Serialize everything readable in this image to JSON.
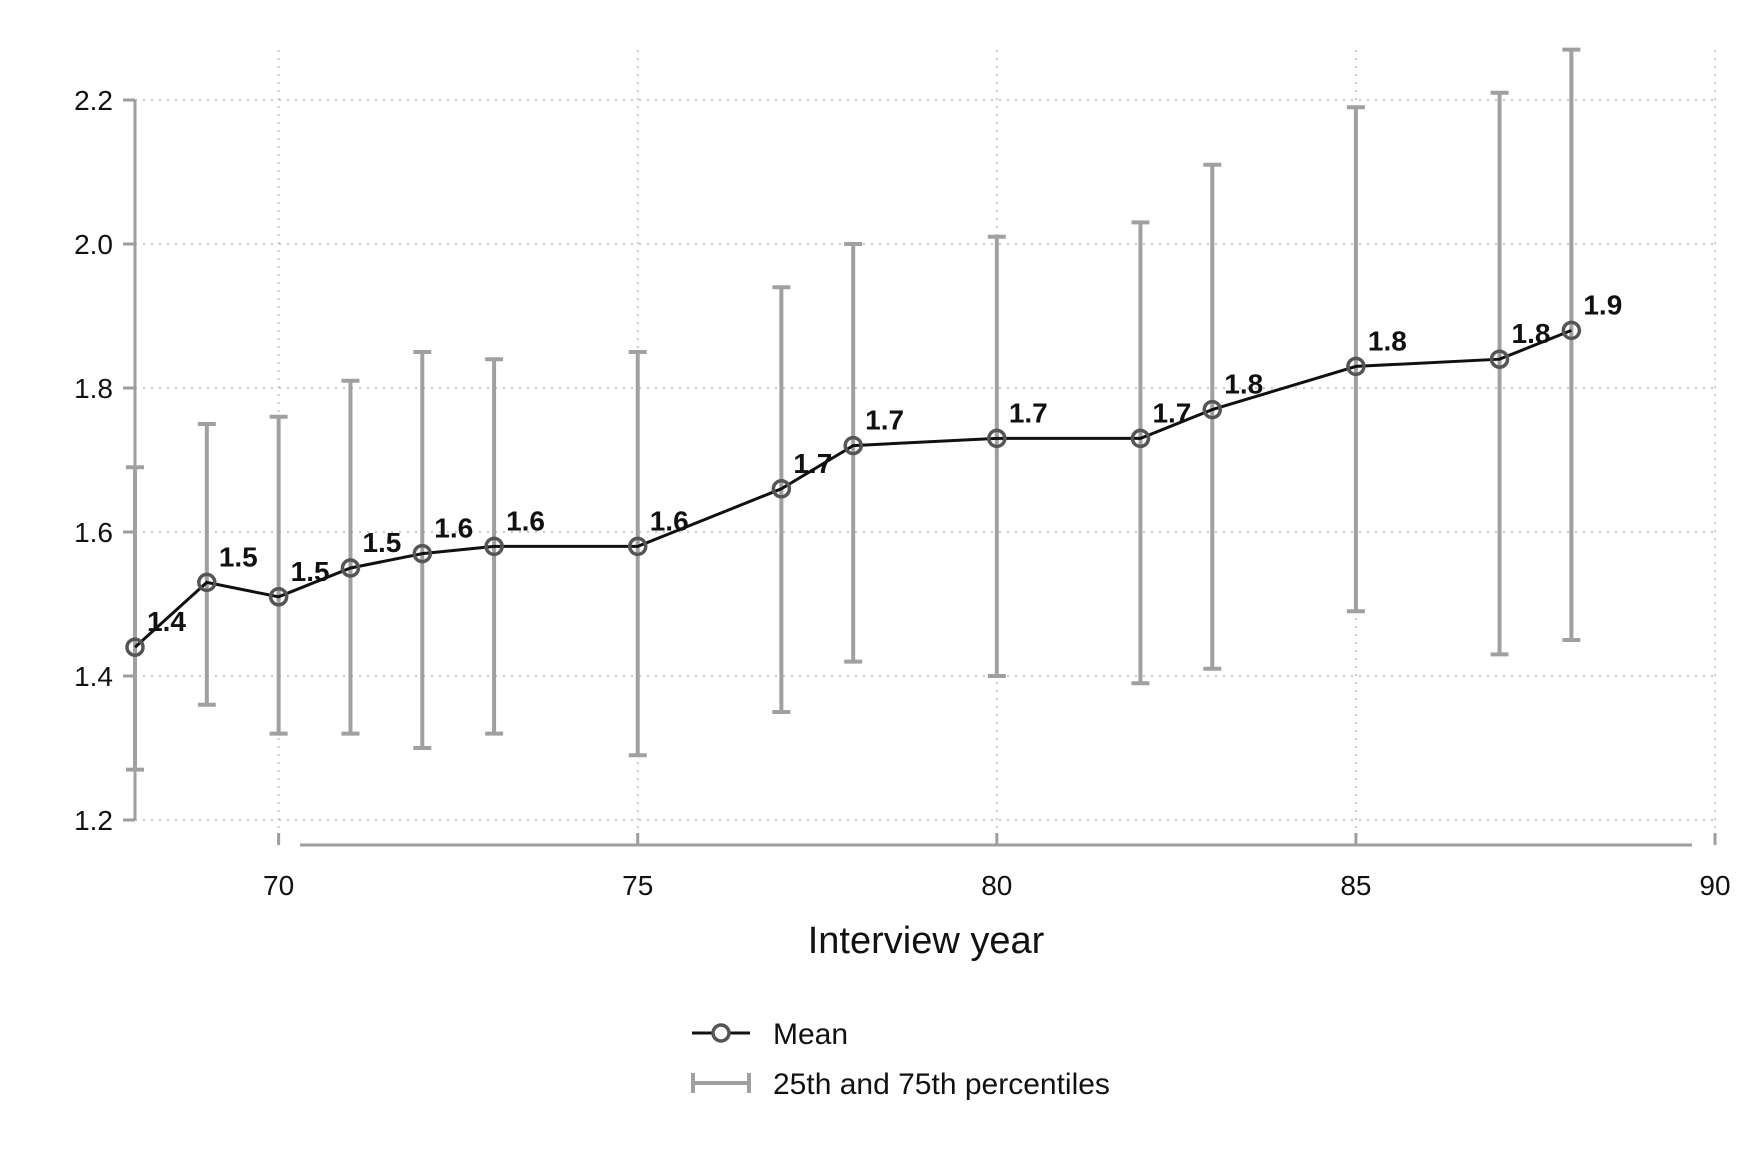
{
  "chart_data": {
    "type": "line",
    "title": "",
    "xlabel": "Interview year",
    "ylabel": "",
    "xlim": [
      68,
      90
    ],
    "ylim": [
      1.2,
      2.2
    ],
    "xticks": [
      70,
      75,
      80,
      85,
      90
    ],
    "yticks": [
      1.2,
      1.4,
      1.6,
      1.8,
      2.0,
      2.2
    ],
    "x_tick_labels": [
      "70",
      "75",
      "80",
      "85",
      "90"
    ],
    "y_tick_labels": [
      "1.2",
      "1.4",
      "1.6",
      "1.8",
      "2.0",
      "2.2"
    ],
    "grid": true,
    "legend_position": "bottom",
    "series": [
      {
        "name": "Mean",
        "kind": "line-with-markers",
        "color": "#111111",
        "marker_color": "#555555",
        "x": [
          68,
          69,
          70,
          71,
          72,
          73,
          75,
          77,
          78,
          80,
          82,
          83,
          85,
          87,
          88
        ],
        "y": [
          1.44,
          1.53,
          1.51,
          1.55,
          1.57,
          1.58,
          1.58,
          1.66,
          1.72,
          1.73,
          1.73,
          1.77,
          1.83,
          1.84,
          1.88
        ],
        "labels": [
          "1.4",
          "1.5",
          "1.5",
          "1.5",
          "1.6",
          "1.6",
          "1.6",
          "1.7",
          "1.7",
          "1.7",
          "1.7",
          "1.8",
          "1.8",
          "1.8",
          "1.9"
        ]
      },
      {
        "name": "25th and 75th percentiles",
        "kind": "error-bars",
        "color": "#a0a0a0",
        "x": [
          68,
          69,
          70,
          71,
          72,
          73,
          75,
          77,
          78,
          80,
          82,
          83,
          85,
          87,
          88
        ],
        "low": [
          1.27,
          1.36,
          1.32,
          1.32,
          1.3,
          1.32,
          1.29,
          1.35,
          1.42,
          1.4,
          1.39,
          1.41,
          1.49,
          1.43,
          1.45
        ],
        "high": [
          1.69,
          1.75,
          1.76,
          1.81,
          1.85,
          1.84,
          1.85,
          1.94,
          2.0,
          2.01,
          2.03,
          2.11,
          2.19,
          2.21,
          2.27
        ]
      }
    ]
  }
}
